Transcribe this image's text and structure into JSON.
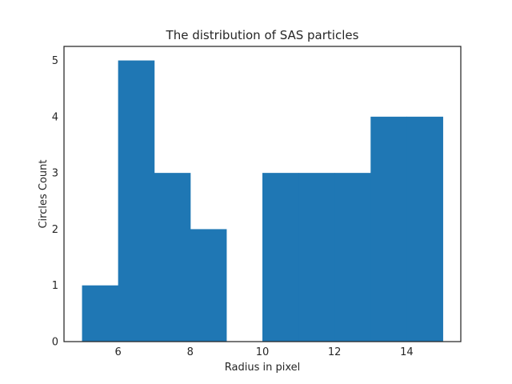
{
  "chart_data": {
    "type": "bar",
    "title": "The distribution of SAS particles",
    "xlabel": "Radius in pixel",
    "ylabel": "Circles Count",
    "bins": [
      {
        "x0": 5,
        "x1": 6,
        "value": 1
      },
      {
        "x0": 6,
        "x1": 7,
        "value": 5
      },
      {
        "x0": 7,
        "x1": 8,
        "value": 3
      },
      {
        "x0": 8,
        "x1": 9,
        "value": 2
      },
      {
        "x0": 9,
        "x1": 10,
        "value": 0
      },
      {
        "x0": 10,
        "x1": 11,
        "value": 3
      },
      {
        "x0": 11,
        "x1": 12,
        "value": 3
      },
      {
        "x0": 12,
        "x1": 13,
        "value": 3
      },
      {
        "x0": 13,
        "x1": 14,
        "value": 4
      },
      {
        "x0": 14,
        "x1": 15,
        "value": 4
      }
    ],
    "xlim": [
      4.5,
      15.5
    ],
    "ylim": [
      0,
      5.25
    ],
    "xticks": [
      6,
      8,
      10,
      12,
      14
    ],
    "yticks": [
      0,
      1,
      2,
      3,
      4,
      5
    ],
    "grid": false,
    "bar_color": "#1f77b4"
  }
}
